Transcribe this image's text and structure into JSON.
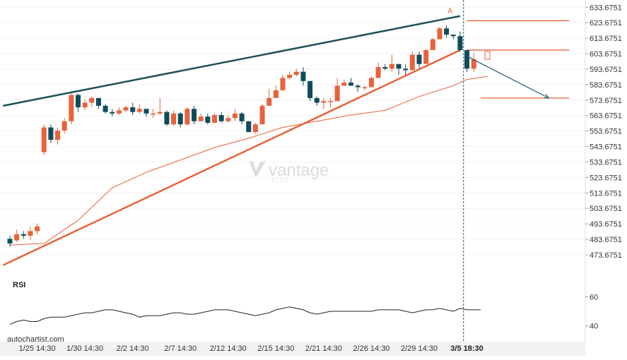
{
  "chart_data": {
    "type": "candlestick",
    "title": "",
    "source": "autochartist.com",
    "watermark": {
      "brand": "vantage",
      "sub": "PLUS"
    },
    "y_axis": {
      "ticks": [
        "633.6751",
        "623.6751",
        "613.6751",
        "603.6751",
        "593.6751",
        "583.6751",
        "573.6751",
        "563.6751",
        "553.6751",
        "543.6751",
        "533.6751",
        "523.6751",
        "513.6751",
        "503.6751",
        "493.6751",
        "483.6751",
        "473.6751"
      ],
      "range": [
        465,
        637
      ]
    },
    "x_axis": {
      "ticks": [
        "1/25 14:30",
        "1/30 14:30",
        "2/2 14:30",
        "2/7 14:30",
        "2/12 14:30",
        "2/15 14:30",
        "2/21 14:30",
        "2/26 14:30",
        "2/29 14:30",
        "3/5 18:30"
      ],
      "tick_index": [
        4,
        11,
        18,
        25,
        32,
        39,
        46,
        53,
        60,
        67
      ],
      "current_tick": "3/5 18:30"
    },
    "colors": {
      "up": "#e8623a",
      "down": "#0f4c5c",
      "resistance": "#1f4f5a",
      "support": "#e8623a",
      "ma": "#e8623a",
      "rsi": "#222222",
      "forecast_arrow": "#1f5f6b",
      "vline": "#1f5f6b"
    },
    "candles": [
      [
        484,
        481,
        486,
        479
      ],
      [
        483,
        487,
        490,
        482
      ],
      [
        487,
        486,
        489,
        484
      ],
      [
        486,
        489,
        492,
        483
      ],
      [
        489,
        492,
        494,
        487
      ],
      [
        540,
        556,
        558,
        538
      ],
      [
        556,
        548,
        558,
        546
      ],
      [
        548,
        554,
        556,
        545
      ],
      [
        554,
        560,
        562,
        552
      ],
      [
        560,
        577,
        578,
        558
      ],
      [
        577,
        569,
        578,
        566
      ],
      [
        569,
        572,
        574,
        567
      ],
      [
        572,
        575,
        576,
        569
      ],
      [
        575,
        570,
        572,
        568
      ],
      [
        570,
        566,
        571,
        565
      ],
      [
        566,
        565,
        568,
        563
      ],
      [
        565,
        567,
        569,
        564
      ],
      [
        567,
        569,
        570,
        566
      ],
      [
        569,
        566,
        572,
        564
      ],
      [
        566,
        568,
        571,
        565
      ],
      [
        568,
        565,
        567,
        563
      ],
      [
        565,
        565,
        568,
        562
      ],
      [
        565,
        566,
        575,
        564
      ],
      [
        566,
        558,
        567,
        557
      ],
      [
        558,
        565,
        567,
        557
      ],
      [
        565,
        558,
        566,
        556
      ],
      [
        558,
        568,
        569,
        557
      ],
      [
        568,
        560,
        570,
        558
      ],
      [
        560,
        563,
        565,
        560
      ],
      [
        563,
        559,
        565,
        558
      ],
      [
        559,
        564,
        565,
        561
      ],
      [
        564,
        560,
        566,
        559
      ],
      [
        560,
        562,
        564,
        559
      ],
      [
        562,
        565,
        568,
        560
      ],
      [
        565,
        560,
        566,
        558
      ],
      [
        560,
        553,
        560,
        553
      ],
      [
        553,
        558,
        559,
        552
      ],
      [
        558,
        570,
        571,
        568
      ],
      [
        570,
        575,
        581,
        571
      ],
      [
        575,
        580,
        583,
        578
      ],
      [
        580,
        588,
        590,
        586
      ],
      [
        588,
        590,
        592,
        587
      ],
      [
        590,
        592,
        594,
        589
      ],
      [
        592,
        586,
        595,
        583
      ],
      [
        586,
        575,
        586,
        573
      ],
      [
        575,
        572,
        576,
        570
      ],
      [
        572,
        573,
        575,
        568
      ],
      [
        573,
        573,
        575,
        569
      ],
      [
        573,
        583,
        588,
        583
      ],
      [
        583,
        585,
        587,
        583
      ],
      [
        585,
        583,
        588,
        583
      ],
      [
        583,
        582,
        584,
        579
      ],
      [
        582,
        582,
        583,
        580
      ],
      [
        582,
        588,
        589,
        582
      ],
      [
        588,
        595,
        598,
        590
      ],
      [
        595,
        594,
        597,
        593
      ],
      [
        594,
        597,
        603,
        592
      ],
      [
        597,
        594,
        596,
        590
      ],
      [
        594,
        593,
        597,
        590
      ],
      [
        593,
        603,
        605,
        595
      ],
      [
        603,
        597,
        605,
        594
      ],
      [
        597,
        606,
        607,
        600
      ],
      [
        606,
        613,
        614,
        611
      ],
      [
        613,
        620,
        621,
        618
      ],
      [
        620,
        616,
        622,
        614
      ],
      [
        616,
        615,
        616,
        613
      ],
      [
        615,
        606,
        618,
        605
      ],
      [
        606,
        594,
        605,
        592
      ],
      [
        594,
        600,
        604,
        592
      ]
    ],
    "projection_candles": [
      [
        600,
        605,
        606,
        599
      ]
    ],
    "ma": [
      [
        0,
        480
      ],
      [
        5,
        481
      ],
      [
        10,
        496
      ],
      [
        15,
        517
      ],
      [
        20,
        527
      ],
      [
        25,
        535
      ],
      [
        30,
        543
      ],
      [
        35,
        549
      ],
      [
        40,
        556
      ],
      [
        45,
        560
      ],
      [
        50,
        564
      ],
      [
        55,
        567
      ],
      [
        60,
        576
      ],
      [
        65,
        583
      ],
      [
        67,
        587
      ],
      [
        70,
        589
      ]
    ],
    "support_line": {
      "from": [
        -1,
        467
      ],
      "to": [
        66,
        606
      ]
    },
    "resistance_line": {
      "from": [
        -1,
        570
      ],
      "to": [
        66,
        628
      ]
    },
    "horizontal_levels": [
      {
        "value": 625,
        "from_index": 67,
        "to_index": 82
      },
      {
        "value": 606,
        "from_index": 67,
        "to_index": 82
      },
      {
        "value": 575,
        "from_index": 69,
        "to_index": 82
      }
    ],
    "forecast_arrow": {
      "from": [
        67,
        602
      ],
      "to": [
        79,
        575
      ]
    },
    "pattern_point_label": "A",
    "pattern_point": [
      64.5,
      629
    ],
    "rsi": {
      "label": "RSI",
      "ticks": [
        "60",
        "40"
      ],
      "range": [
        36,
        64
      ],
      "values": [
        41,
        43,
        44,
        43,
        43,
        45,
        46,
        46,
        46,
        47,
        48,
        49,
        49,
        50,
        51,
        51,
        50,
        49,
        48,
        46,
        47,
        47,
        47,
        48,
        49,
        49,
        48,
        48,
        49,
        50,
        51,
        51,
        51,
        50,
        49,
        48,
        47,
        48,
        49,
        51,
        52,
        53,
        52,
        51,
        49,
        48,
        49,
        50,
        50,
        50,
        50,
        50,
        50,
        50,
        51,
        51,
        51,
        51,
        50,
        49,
        50,
        51,
        51,
        52,
        51,
        50,
        52,
        51,
        51,
        51
      ]
    }
  }
}
